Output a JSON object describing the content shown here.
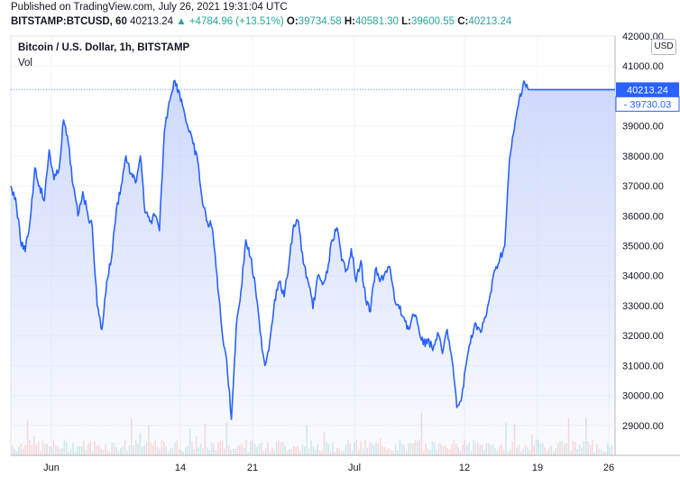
{
  "header": {
    "published": "Published on TradingView.com, July 26, 2021 19:31:04 UTC",
    "symbol": "BITSTAMP:BTCUSD, 60",
    "last": "40213.24",
    "change": "+4784.96 (+13.51%)",
    "o_label": "O:",
    "o_value": "39734.58",
    "h_label": "H:",
    "h_value": "40581.30",
    "l_label": "L:",
    "l_value": "39600.55",
    "c_label": "C:",
    "c_value": "40213.24"
  },
  "legend": {
    "title": "Bitcoin / U.S. Dollar, 1h, BITSTAMP",
    "vol_label": "Vol"
  },
  "currency": "USD",
  "colors": {
    "line": "#2962ff",
    "fill_top": "#c8d4fb",
    "up": "#26a69a",
    "down": "#ef5350",
    "grid": "#f0f3fa"
  },
  "chart_data": {
    "type": "area",
    "x_labels": [
      "Jun",
      "14",
      "21",
      "Jul",
      "12",
      "19",
      "26"
    ],
    "y_ticks": [
      29000,
      30000,
      31000,
      32000,
      33000,
      34000,
      35000,
      36000,
      37000,
      38000,
      39000,
      41000
    ],
    "y_top_label": "42000.00",
    "ylim": [
      28000,
      42000
    ],
    "last_price": "40213.24",
    "prev_price": "39730.03",
    "series": [
      {
        "x_days": [
          0,
          0.5,
          1,
          1.5,
          2,
          2.5,
          3,
          3.5,
          4,
          4.5,
          5,
          5.5,
          6,
          6.5,
          7,
          7.5,
          8,
          8.5,
          9,
          9.5,
          10,
          10.5,
          11,
          11.5,
          12,
          12.5,
          13,
          13.5,
          14,
          14.5,
          15,
          15.5,
          16,
          16.5,
          17,
          17.5,
          18,
          18.5,
          19,
          19.5,
          20,
          20.5,
          21,
          21.5,
          22,
          22.5,
          23,
          23.5,
          24,
          24.5,
          25,
          25.5,
          26,
          26.5,
          27,
          27.5,
          28,
          28.5,
          29,
          29.5,
          30,
          30.5,
          31,
          31.5,
          32,
          32.5,
          33,
          33.5,
          34,
          34.5,
          35,
          35.5,
          36,
          36.5,
          37,
          37.5,
          38,
          38.5,
          39,
          39.5,
          40,
          40.5,
          41,
          41.5,
          42,
          42.5,
          43,
          43.5,
          44,
          44.5,
          45,
          45.5,
          46,
          46.5,
          47,
          47.5,
          48,
          48.5,
          49,
          49.5,
          50,
          50.5,
          51,
          51.5,
          52,
          52.5,
          53,
          53.5,
          54,
          54.5,
          55,
          55.5,
          56,
          56.5,
          57,
          57.5,
          58,
          58.5,
          59,
          59.5,
          60,
          60.5,
          61,
          61.5,
          62,
          62.5,
          62.8,
          63
        ],
        "values": [
          37000,
          36600,
          35200,
          34800,
          35800,
          37600,
          37000,
          36500,
          38200,
          37200,
          37500,
          39200,
          38400,
          37000,
          36000,
          36800,
          36100,
          35600,
          33000,
          32200,
          33800,
          34600,
          36200,
          37000,
          38000,
          37400,
          37100,
          38000,
          36100,
          35800,
          36000,
          35500,
          38800,
          39800,
          40500,
          40200,
          39600,
          38900,
          38400,
          37800,
          36400,
          35800,
          35600,
          34000,
          32200,
          31200,
          29200,
          32300,
          33500,
          35200,
          34600,
          33600,
          32100,
          31000,
          31800,
          33200,
          33800,
          33300,
          34400,
          35700,
          35800,
          34400,
          33800,
          32900,
          34000,
          33700,
          34100,
          35200,
          35600,
          34500,
          34200,
          34900,
          33800,
          34500,
          33200,
          32800,
          34200,
          33800,
          34100,
          34300,
          33200,
          32900,
          32600,
          32200,
          32700,
          32300,
          31700,
          31900,
          31500,
          32100,
          31400,
          32200,
          31200,
          29600,
          29900,
          31100,
          32000,
          32400,
          32100,
          32600,
          33400,
          34200,
          34600,
          35000,
          37900,
          38900,
          39900,
          40500,
          40213,
          40213,
          40213,
          40213,
          40213,
          40213,
          40213,
          40213,
          40213,
          40213,
          40213,
          40213,
          40213,
          40213,
          40213,
          40213,
          40213,
          40213,
          40213,
          40213
        ]
      }
    ]
  }
}
